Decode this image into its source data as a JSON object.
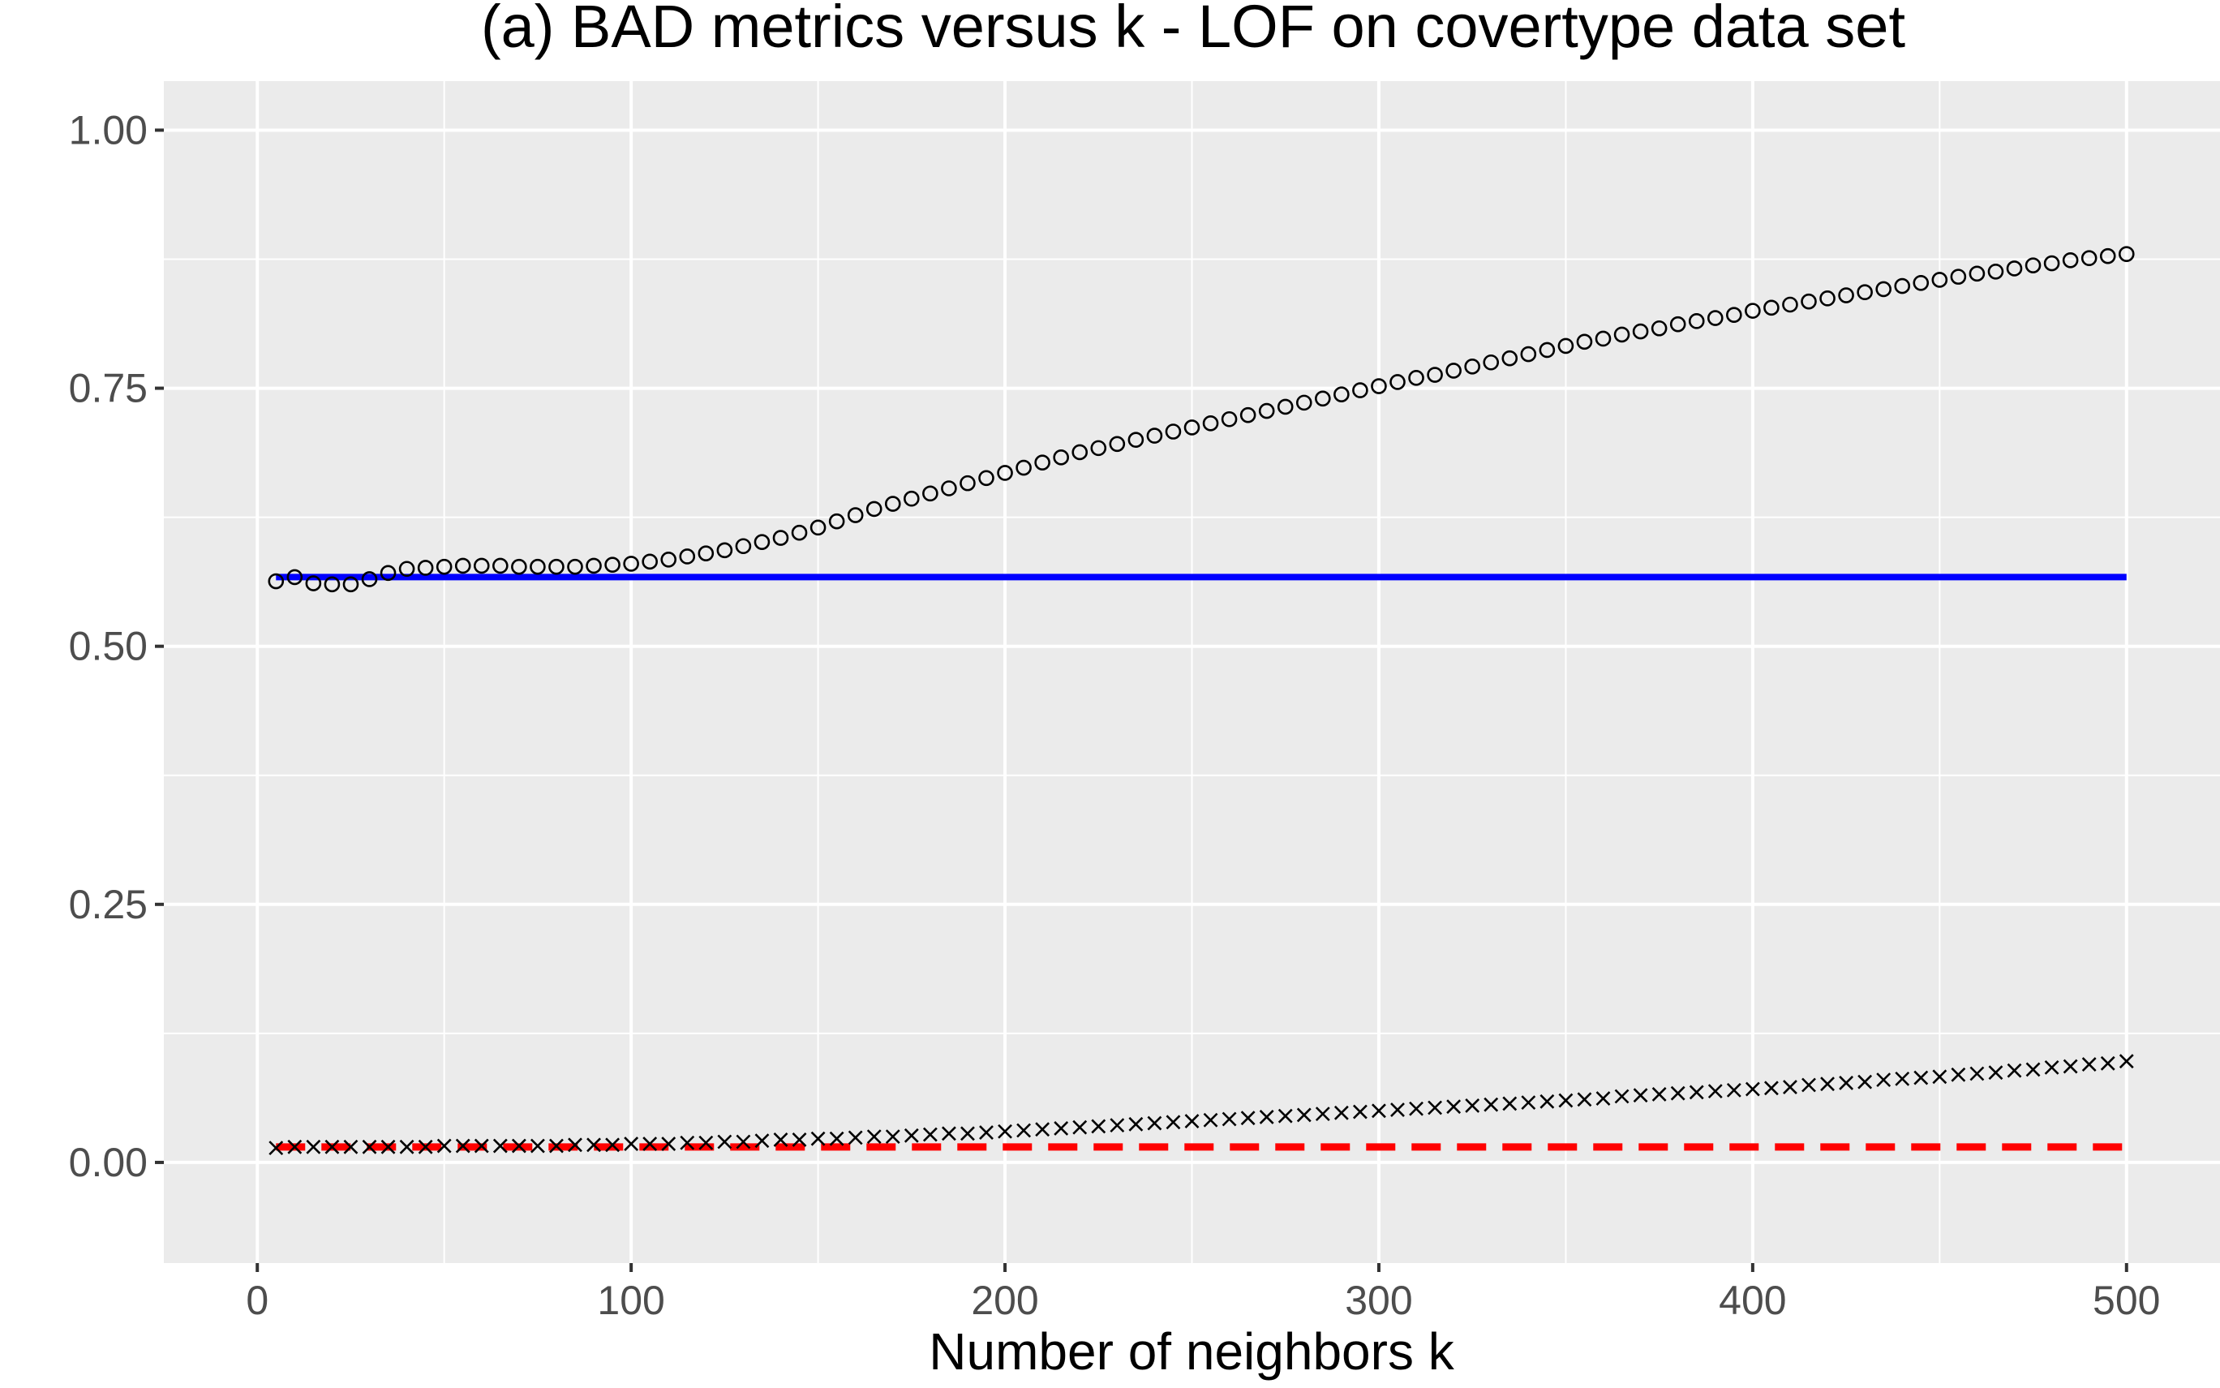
{
  "chart_data": {
    "type": "scatter",
    "title": "(a) BAD metrics versus k - LOF on covertype data set",
    "xlabel": "Number of neighbors k",
    "ylabel": "",
    "xlim": [
      -25,
      525
    ],
    "ylim": [
      -0.0975,
      1.0475
    ],
    "x_ticks": [
      0,
      100,
      200,
      300,
      400,
      500
    ],
    "x_tick_labels": [
      "0",
      "100",
      "200",
      "300",
      "400",
      "500"
    ],
    "y_ticks": [
      0,
      0.25,
      0.5,
      0.75,
      1
    ],
    "y_tick_labels": [
      "0.00",
      "0.25",
      "0.50",
      "0.75",
      "1.00"
    ],
    "grid": true,
    "legend": "none",
    "background": "#ebebeb",
    "series": [
      {
        "marker": "circle",
        "color": "#000000",
        "x": [
          5,
          10,
          15,
          20,
          25,
          30,
          35,
          40,
          45,
          50,
          55,
          60,
          65,
          70,
          75,
          80,
          85,
          90,
          95,
          100,
          105,
          110,
          115,
          120,
          125,
          130,
          135,
          140,
          145,
          150,
          155,
          160,
          165,
          170,
          175,
          180,
          185,
          190,
          195,
          200,
          205,
          210,
          215,
          220,
          225,
          230,
          235,
          240,
          245,
          250,
          255,
          260,
          265,
          270,
          275,
          280,
          285,
          290,
          295,
          300,
          305,
          310,
          315,
          320,
          325,
          330,
          335,
          340,
          345,
          350,
          355,
          360,
          365,
          370,
          375,
          380,
          385,
          390,
          395,
          400,
          405,
          410,
          415,
          420,
          425,
          430,
          435,
          440,
          445,
          450,
          455,
          460,
          465,
          470,
          475,
          480,
          485,
          490,
          495,
          500
        ],
        "y": [
          0.563,
          0.567,
          0.561,
          0.56,
          0.56,
          0.565,
          0.571,
          0.575,
          0.576,
          0.577,
          0.578,
          0.578,
          0.578,
          0.577,
          0.577,
          0.577,
          0.577,
          0.578,
          0.579,
          0.58,
          0.582,
          0.584,
          0.587,
          0.59,
          0.593,
          0.597,
          0.601,
          0.605,
          0.61,
          0.615,
          0.621,
          0.627,
          0.633,
          0.638,
          0.643,
          0.648,
          0.653,
          0.658,
          0.663,
          0.668,
          0.673,
          0.678,
          0.683,
          0.688,
          0.692,
          0.696,
          0.7,
          0.704,
          0.708,
          0.712,
          0.716,
          0.72,
          0.724,
          0.728,
          0.732,
          0.736,
          0.74,
          0.744,
          0.748,
          0.752,
          0.756,
          0.76,
          0.763,
          0.767,
          0.771,
          0.775,
          0.779,
          0.783,
          0.787,
          0.791,
          0.795,
          0.798,
          0.802,
          0.805,
          0.808,
          0.812,
          0.815,
          0.818,
          0.821,
          0.825,
          0.828,
          0.831,
          0.834,
          0.837,
          0.84,
          0.843,
          0.846,
          0.849,
          0.852,
          0.855,
          0.858,
          0.861,
          0.863,
          0.866,
          0.869,
          0.871,
          0.874,
          0.876,
          0.878,
          0.88
        ]
      },
      {
        "marker": "cross",
        "color": "#000000",
        "x": [
          5,
          10,
          15,
          20,
          25,
          30,
          35,
          40,
          45,
          50,
          55,
          60,
          65,
          70,
          75,
          80,
          85,
          90,
          95,
          100,
          105,
          110,
          115,
          120,
          125,
          130,
          135,
          140,
          145,
          150,
          155,
          160,
          165,
          170,
          175,
          180,
          185,
          190,
          195,
          200,
          205,
          210,
          215,
          220,
          225,
          230,
          235,
          240,
          245,
          250,
          255,
          260,
          265,
          270,
          275,
          280,
          285,
          290,
          295,
          300,
          305,
          310,
          315,
          320,
          325,
          330,
          335,
          340,
          345,
          350,
          355,
          360,
          365,
          370,
          375,
          380,
          385,
          390,
          395,
          400,
          405,
          410,
          415,
          420,
          425,
          430,
          435,
          440,
          445,
          450,
          455,
          460,
          465,
          470,
          475,
          480,
          485,
          490,
          495,
          500
        ],
        "y": [
          0.014,
          0.015,
          0.015,
          0.015,
          0.015,
          0.015,
          0.015,
          0.015,
          0.015,
          0.016,
          0.016,
          0.016,
          0.016,
          0.016,
          0.016,
          0.016,
          0.017,
          0.017,
          0.017,
          0.018,
          0.018,
          0.018,
          0.019,
          0.019,
          0.02,
          0.02,
          0.021,
          0.022,
          0.022,
          0.023,
          0.023,
          0.024,
          0.025,
          0.025,
          0.026,
          0.027,
          0.028,
          0.028,
          0.029,
          0.03,
          0.031,
          0.032,
          0.033,
          0.034,
          0.035,
          0.036,
          0.037,
          0.038,
          0.039,
          0.04,
          0.041,
          0.042,
          0.043,
          0.044,
          0.045,
          0.046,
          0.047,
          0.048,
          0.049,
          0.05,
          0.051,
          0.052,
          0.053,
          0.054,
          0.055,
          0.056,
          0.057,
          0.058,
          0.059,
          0.06,
          0.061,
          0.062,
          0.064,
          0.065,
          0.066,
          0.067,
          0.068,
          0.069,
          0.07,
          0.071,
          0.072,
          0.073,
          0.075,
          0.076,
          0.077,
          0.078,
          0.08,
          0.081,
          0.082,
          0.083,
          0.085,
          0.086,
          0.087,
          0.089,
          0.09,
          0.092,
          0.093,
          0.095,
          0.096,
          0.098
        ]
      }
    ],
    "reference_lines": [
      {
        "style": "solid",
        "color": "#0000ff",
        "x": [
          5,
          500
        ],
        "y": 0.567
      },
      {
        "style": "dashed",
        "color": "#ff0000",
        "x": [
          5,
          500
        ],
        "y": 0.015
      }
    ]
  }
}
